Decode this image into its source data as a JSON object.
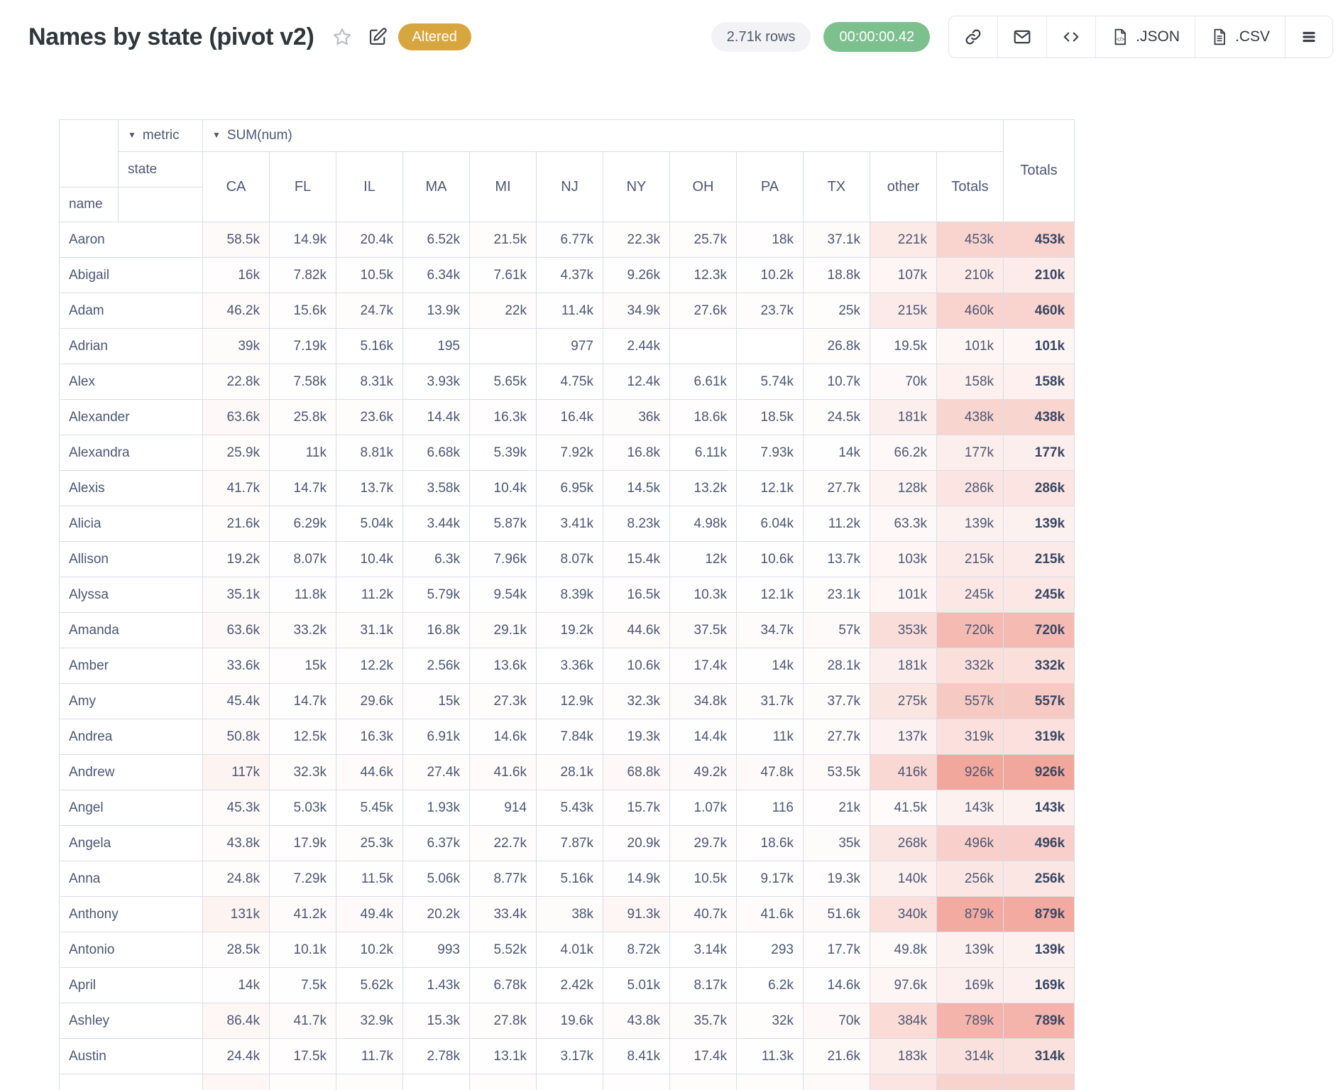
{
  "header": {
    "title": "Names by state (pivot v2)",
    "badge": "Altered",
    "rows_pill": "2.71k rows",
    "timer_pill": "00:00:00.42",
    "toolbar": [
      {
        "icon": "link-icon",
        "label": ""
      },
      {
        "icon": "mail-icon",
        "label": ""
      },
      {
        "icon": "code-icon",
        "label": ""
      },
      {
        "icon": "json-file-icon",
        "label": ".JSON"
      },
      {
        "icon": "csv-file-icon",
        "label": ".CSV"
      },
      {
        "icon": "menu-icon",
        "label": ""
      }
    ]
  },
  "colors": {
    "badge_bg": "#D8A63F",
    "timer_bg": "#7CC08D",
    "rows_pill_bg": "#F3F3F5",
    "heat_base": "#E96957",
    "border": "#D8DEE8",
    "text": "#4C5773"
  },
  "pivot": {
    "header": {
      "metric_label": "metric",
      "sum_label": "SUM(num)",
      "state_label": "state",
      "name_label": "name",
      "grand_totals_label": "Totals"
    },
    "heat": {
      "max_value": 926000,
      "max_alpha": 0.59
    },
    "columns": [
      "CA",
      "FL",
      "IL",
      "MA",
      "MI",
      "NJ",
      "NY",
      "OH",
      "PA",
      "TX",
      "other",
      "Totals"
    ],
    "rows": [
      {
        "name": "Aaron",
        "values": [
          "58.5k",
          "14.9k",
          "20.4k",
          "6.52k",
          "21.5k",
          "6.77k",
          "22.3k",
          "25.7k",
          "18k",
          "37.1k",
          "221k",
          "453k"
        ],
        "total": "453k"
      },
      {
        "name": "Abigail",
        "values": [
          "16k",
          "7.82k",
          "10.5k",
          "6.34k",
          "7.61k",
          "4.37k",
          "9.26k",
          "12.3k",
          "10.2k",
          "18.8k",
          "107k",
          "210k"
        ],
        "total": "210k"
      },
      {
        "name": "Adam",
        "values": [
          "46.2k",
          "15.6k",
          "24.7k",
          "13.9k",
          "22k",
          "11.4k",
          "34.9k",
          "27.6k",
          "23.7k",
          "25k",
          "215k",
          "460k"
        ],
        "total": "460k"
      },
      {
        "name": "Adrian",
        "values": [
          "39k",
          "7.19k",
          "5.16k",
          "195",
          "",
          "977",
          "2.44k",
          "",
          "",
          "26.8k",
          "19.5k",
          "101k"
        ],
        "total": "101k"
      },
      {
        "name": "Alex",
        "values": [
          "22.8k",
          "7.58k",
          "8.31k",
          "3.93k",
          "5.65k",
          "4.75k",
          "12.4k",
          "6.61k",
          "5.74k",
          "10.7k",
          "70k",
          "158k"
        ],
        "total": "158k"
      },
      {
        "name": "Alexander",
        "values": [
          "63.6k",
          "25.8k",
          "23.6k",
          "14.4k",
          "16.3k",
          "16.4k",
          "36k",
          "18.6k",
          "18.5k",
          "24.5k",
          "181k",
          "438k"
        ],
        "total": "438k"
      },
      {
        "name": "Alexandra",
        "values": [
          "25.9k",
          "11k",
          "8.81k",
          "6.68k",
          "5.39k",
          "7.92k",
          "16.8k",
          "6.11k",
          "7.93k",
          "14k",
          "66.2k",
          "177k"
        ],
        "total": "177k"
      },
      {
        "name": "Alexis",
        "values": [
          "41.7k",
          "14.7k",
          "13.7k",
          "3.58k",
          "10.4k",
          "6.95k",
          "14.5k",
          "13.2k",
          "12.1k",
          "27.7k",
          "128k",
          "286k"
        ],
        "total": "286k"
      },
      {
        "name": "Alicia",
        "values": [
          "21.6k",
          "6.29k",
          "5.04k",
          "3.44k",
          "5.87k",
          "3.41k",
          "8.23k",
          "4.98k",
          "6.04k",
          "11.2k",
          "63.3k",
          "139k"
        ],
        "total": "139k"
      },
      {
        "name": "Allison",
        "values": [
          "19.2k",
          "8.07k",
          "10.4k",
          "6.3k",
          "7.96k",
          "8.07k",
          "15.4k",
          "12k",
          "10.6k",
          "13.7k",
          "103k",
          "215k"
        ],
        "total": "215k"
      },
      {
        "name": "Alyssa",
        "values": [
          "35.1k",
          "11.8k",
          "11.2k",
          "5.79k",
          "9.54k",
          "8.39k",
          "16.5k",
          "10.3k",
          "12.1k",
          "23.1k",
          "101k",
          "245k"
        ],
        "total": "245k"
      },
      {
        "name": "Amanda",
        "values": [
          "63.6k",
          "33.2k",
          "31.1k",
          "16.8k",
          "29.1k",
          "19.2k",
          "44.6k",
          "37.5k",
          "34.7k",
          "57k",
          "353k",
          "720k"
        ],
        "total": "720k"
      },
      {
        "name": "Amber",
        "values": [
          "33.6k",
          "15k",
          "12.2k",
          "2.56k",
          "13.6k",
          "3.36k",
          "10.6k",
          "17.4k",
          "14k",
          "28.1k",
          "181k",
          "332k"
        ],
        "total": "332k"
      },
      {
        "name": "Amy",
        "values": [
          "45.4k",
          "14.7k",
          "29.6k",
          "15k",
          "27.3k",
          "12.9k",
          "32.3k",
          "34.8k",
          "31.7k",
          "37.7k",
          "275k",
          "557k"
        ],
        "total": "557k"
      },
      {
        "name": "Andrea",
        "values": [
          "50.8k",
          "12.5k",
          "16.3k",
          "6.91k",
          "14.6k",
          "7.84k",
          "19.3k",
          "14.4k",
          "11k",
          "27.7k",
          "137k",
          "319k"
        ],
        "total": "319k"
      },
      {
        "name": "Andrew",
        "values": [
          "117k",
          "32.3k",
          "44.6k",
          "27.4k",
          "41.6k",
          "28.1k",
          "68.8k",
          "49.2k",
          "47.8k",
          "53.5k",
          "416k",
          "926k"
        ],
        "total": "926k"
      },
      {
        "name": "Angel",
        "values": [
          "45.3k",
          "5.03k",
          "5.45k",
          "1.93k",
          "914",
          "5.43k",
          "15.7k",
          "1.07k",
          "116",
          "21k",
          "41.5k",
          "143k"
        ],
        "total": "143k"
      },
      {
        "name": "Angela",
        "values": [
          "43.8k",
          "17.9k",
          "25.3k",
          "6.37k",
          "22.7k",
          "7.87k",
          "20.9k",
          "29.7k",
          "18.6k",
          "35k",
          "268k",
          "496k"
        ],
        "total": "496k"
      },
      {
        "name": "Anna",
        "values": [
          "24.8k",
          "7.29k",
          "11.5k",
          "5.06k",
          "8.77k",
          "5.16k",
          "14.9k",
          "10.5k",
          "9.17k",
          "19.3k",
          "140k",
          "256k"
        ],
        "total": "256k"
      },
      {
        "name": "Anthony",
        "values": [
          "131k",
          "41.2k",
          "49.4k",
          "20.2k",
          "33.4k",
          "38k",
          "91.3k",
          "40.7k",
          "41.6k",
          "51.6k",
          "340k",
          "879k"
        ],
        "total": "879k"
      },
      {
        "name": "Antonio",
        "values": [
          "28.5k",
          "10.1k",
          "10.2k",
          "993",
          "5.52k",
          "4.01k",
          "8.72k",
          "3.14k",
          "293",
          "17.7k",
          "49.8k",
          "139k"
        ],
        "total": "139k"
      },
      {
        "name": "April",
        "values": [
          "14k",
          "7.5k",
          "5.62k",
          "1.43k",
          "6.78k",
          "2.42k",
          "5.01k",
          "8.17k",
          "6.2k",
          "14.6k",
          "97.6k",
          "169k"
        ],
        "total": "169k"
      },
      {
        "name": "Ashley",
        "values": [
          "86.4k",
          "41.7k",
          "32.9k",
          "15.3k",
          "27.8k",
          "19.6k",
          "43.8k",
          "35.7k",
          "32k",
          "70k",
          "384k",
          "789k"
        ],
        "total": "789k"
      },
      {
        "name": "Austin",
        "values": [
          "24.4k",
          "17.5k",
          "11.7k",
          "2.78k",
          "13.1k",
          "3.17k",
          "8.41k",
          "17.4k",
          "11.3k",
          "21.6k",
          "183k",
          "314k"
        ],
        "total": "314k"
      }
    ]
  }
}
